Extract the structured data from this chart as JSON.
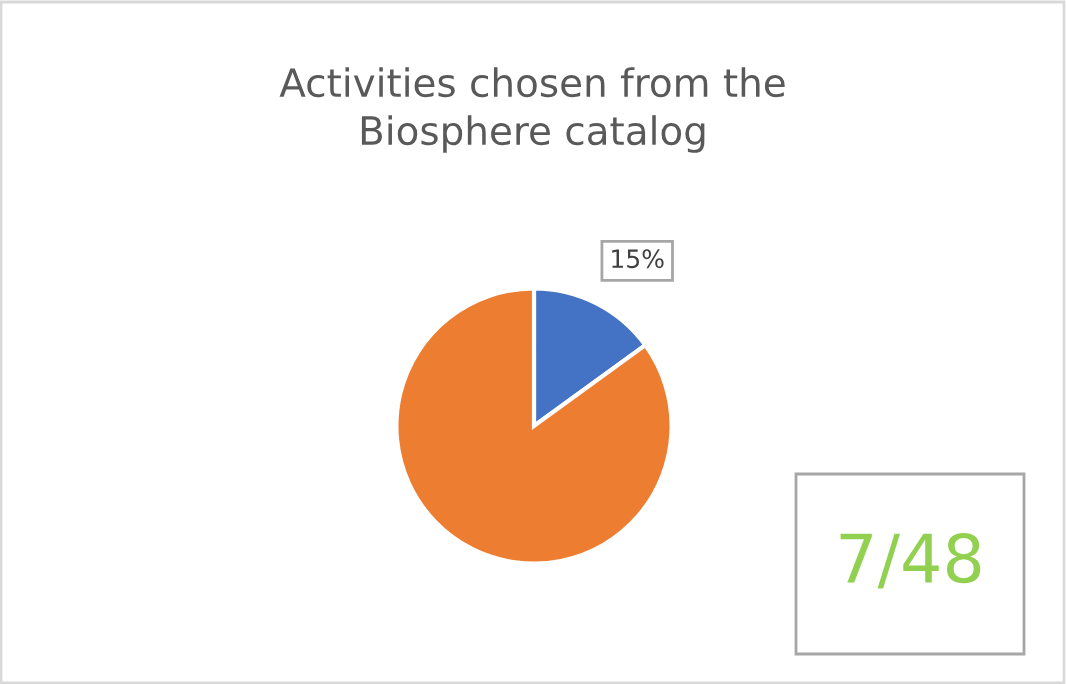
{
  "chart_data": {
    "type": "pie",
    "title": "Activities chosen from the\nBiosphere catalog",
    "categories": [
      null,
      null
    ],
    "values": [
      15,
      85
    ],
    "colors": [
      "#4472c4",
      "#ed7d31"
    ],
    "value_labels": [
      "15%",
      null
    ],
    "legend": false,
    "annotations": [
      "7/48"
    ]
  }
}
